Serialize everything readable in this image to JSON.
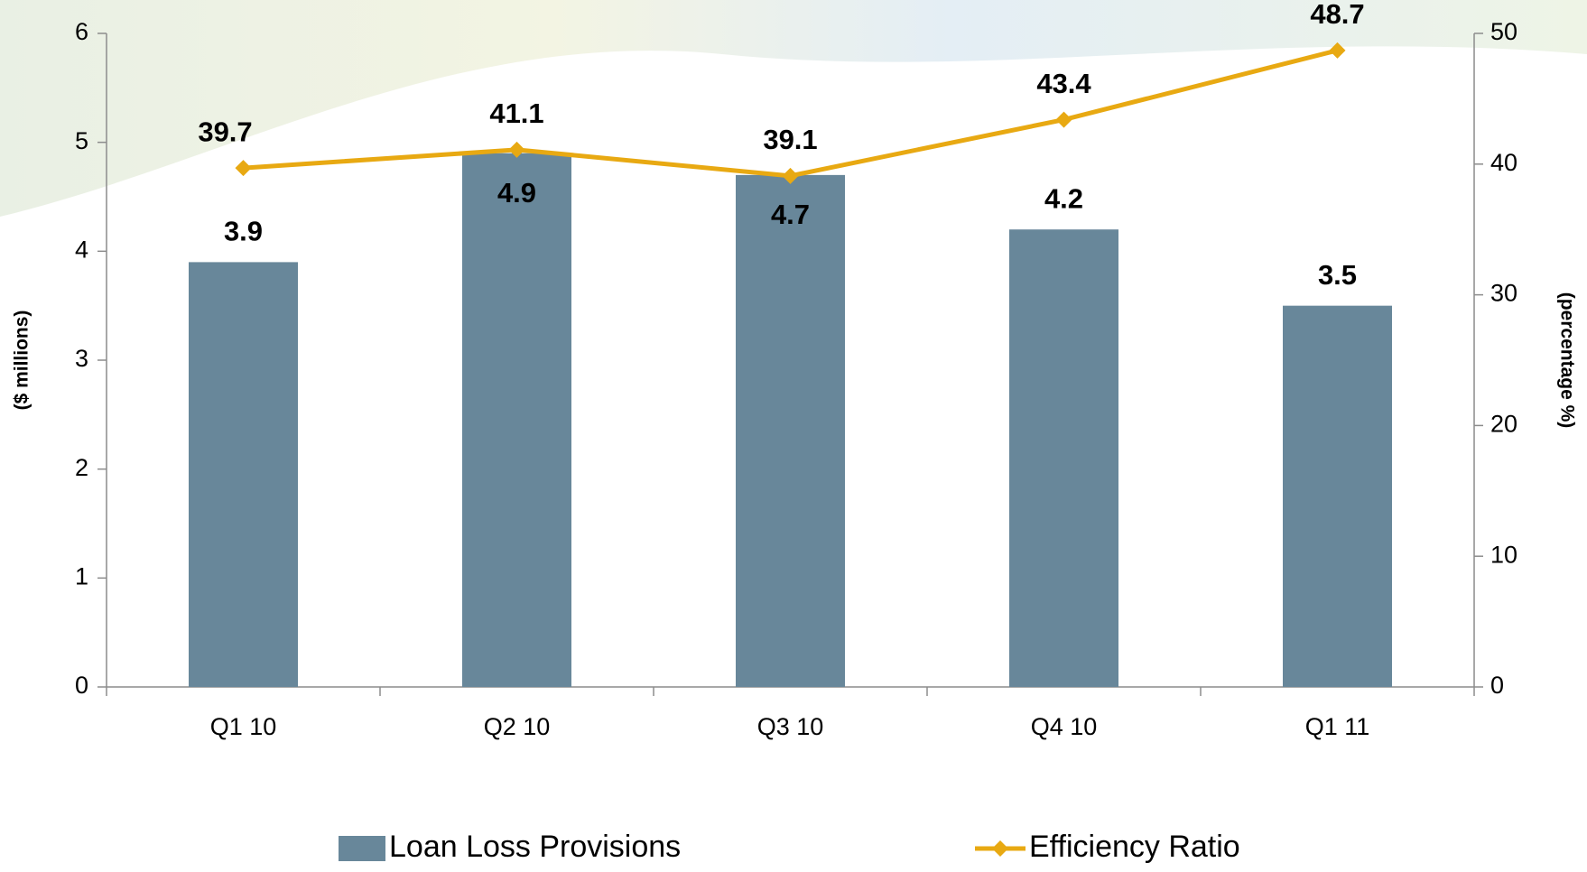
{
  "chart_data": {
    "type": "bar-line",
    "categories": [
      "Q1 10",
      "Q2 10",
      "Q3 10",
      "Q4 10",
      "Q1 11"
    ],
    "series": [
      {
        "name": "Loan Loss Provisions",
        "color": "#68879a",
        "type": "bar",
        "axis": "y",
        "values": [
          3.9,
          4.9,
          4.7,
          4.2,
          3.5
        ]
      },
      {
        "name": "Efficiency Ratio",
        "color": "#e8a912",
        "type": "line",
        "axis": "y2",
        "values": [
          39.7,
          41.1,
          39.1,
          43.4,
          48.7
        ]
      }
    ],
    "ylabel": "($ millions)",
    "y2label": "(percentage %)",
    "ylim": [
      0,
      6
    ],
    "yticks": [
      0,
      1,
      2,
      3,
      4,
      5,
      6
    ],
    "y2lim": [
      0,
      50
    ],
    "y2ticks": [
      0,
      10,
      20,
      30,
      40,
      50
    ],
    "grid": false,
    "legend": "bottom"
  }
}
